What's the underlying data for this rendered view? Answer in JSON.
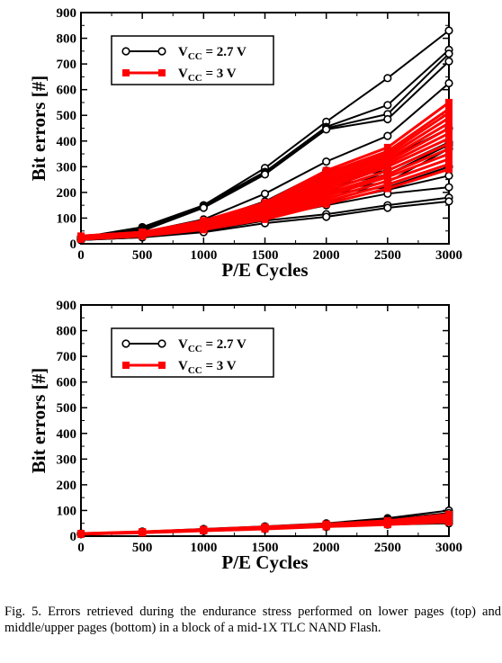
{
  "caption": "Fig. 5.  Errors retrieved during the endurance stress performed on lower pages (top) and middle/upper pages (bottom) in a block of a mid-1X TLC NAND Flash.",
  "colors": {
    "v27": "#000000",
    "v3": "#ff0000"
  },
  "chart_data": [
    {
      "type": "line",
      "panel": "top",
      "xlabel": "P/E Cycles",
      "ylabel": "Bit errors [#]",
      "xlim": [
        0,
        3000
      ],
      "ylim": [
        0,
        900
      ],
      "x_ticks": [
        0,
        500,
        1000,
        1500,
        2000,
        2500,
        3000
      ],
      "y_ticks": [
        0,
        100,
        200,
        300,
        400,
        500,
        600,
        700,
        800,
        900
      ],
      "legend": {
        "position": "top-left",
        "entries": [
          {
            "label_main": "V",
            "label_sub": "CC",
            "label_rest": " = 2.7 V",
            "color": "#000000",
            "marker": "open-circle"
          },
          {
            "label_main": "V",
            "label_sub": "CC",
            "label_rest": " = 3 V",
            "color": "#ff0000",
            "marker": "filled-square"
          }
        ]
      },
      "x": [
        0,
        500,
        1000,
        1500,
        2000,
        2500,
        3000
      ],
      "series": [
        {
          "group": "2.7V",
          "values": [
            25,
            65,
            150,
            295,
            475,
            645,
            830
          ]
        },
        {
          "group": "2.7V",
          "values": [
            25,
            60,
            150,
            280,
            455,
            540,
            755
          ]
        },
        {
          "group": "2.7V",
          "values": [
            25,
            55,
            145,
            275,
            450,
            505,
            740
          ]
        },
        {
          "group": "2.7V",
          "values": [
            25,
            50,
            140,
            270,
            445,
            485,
            710
          ]
        },
        {
          "group": "2.7V",
          "values": [
            20,
            45,
            95,
            195,
            320,
            420,
            625
          ]
        },
        {
          "group": "2.7V",
          "values": [
            20,
            40,
            85,
            165,
            285,
            330,
            450
          ]
        },
        {
          "group": "2.7V",
          "values": [
            20,
            35,
            80,
            145,
            250,
            285,
            395
          ]
        },
        {
          "group": "2.7V",
          "values": [
            20,
            35,
            75,
            135,
            220,
            270,
            385
          ]
        },
        {
          "group": "2.7V",
          "values": [
            15,
            35,
            70,
            125,
            205,
            240,
            370
          ]
        },
        {
          "group": "2.7V",
          "values": [
            15,
            30,
            65,
            115,
            195,
            220,
            300
          ]
        },
        {
          "group": "2.7V",
          "values": [
            15,
            30,
            60,
            110,
            160,
            210,
            265
          ]
        },
        {
          "group": "2.7V",
          "values": [
            15,
            28,
            55,
            100,
            150,
            195,
            220
          ]
        },
        {
          "group": "2.7V",
          "values": [
            15,
            25,
            50,
            90,
            115,
            150,
            180
          ]
        },
        {
          "group": "2.7V",
          "values": [
            15,
            25,
            45,
            80,
            105,
            140,
            165
          ]
        },
        {
          "group": "3V",
          "values": [
            30,
            45,
            90,
            160,
            285,
            375,
            550
          ]
        },
        {
          "group": "3V",
          "values": [
            30,
            45,
            85,
            155,
            275,
            360,
            525
          ]
        },
        {
          "group": "3V",
          "values": [
            28,
            42,
            85,
            150,
            265,
            350,
            510
          ]
        },
        {
          "group": "3V",
          "values": [
            28,
            42,
            80,
            145,
            255,
            340,
            490
          ]
        },
        {
          "group": "3V",
          "values": [
            25,
            40,
            80,
            140,
            245,
            330,
            470
          ]
        },
        {
          "group": "3V",
          "values": [
            25,
            40,
            75,
            135,
            235,
            320,
            450
          ]
        },
        {
          "group": "3V",
          "values": [
            25,
            38,
            75,
            130,
            225,
            310,
            430
          ]
        },
        {
          "group": "3V",
          "values": [
            22,
            38,
            70,
            125,
            215,
            300,
            410
          ]
        },
        {
          "group": "3V",
          "values": [
            22,
            35,
            70,
            120,
            205,
            285,
            390
          ]
        },
        {
          "group": "3V",
          "values": [
            20,
            35,
            65,
            115,
            195,
            270,
            370
          ]
        },
        {
          "group": "3V",
          "values": [
            20,
            32,
            65,
            110,
            185,
            260,
            350
          ]
        },
        {
          "group": "3V",
          "values": [
            20,
            32,
            60,
            105,
            175,
            245,
            330
          ]
        },
        {
          "group": "3V",
          "values": [
            18,
            30,
            60,
            100,
            165,
            230,
            310
          ]
        },
        {
          "group": "3V",
          "values": [
            18,
            30,
            55,
            95,
            155,
            215,
            290
          ]
        }
      ]
    },
    {
      "type": "line",
      "panel": "bottom",
      "xlabel": "P/E Cycles",
      "ylabel": "Bit errors [#]",
      "xlim": [
        0,
        3000
      ],
      "ylim": [
        0,
        900
      ],
      "x_ticks": [
        0,
        500,
        1000,
        1500,
        2000,
        2500,
        3000
      ],
      "y_ticks": [
        0,
        100,
        200,
        300,
        400,
        500,
        600,
        700,
        800,
        900
      ],
      "legend": {
        "position": "top-left",
        "entries": [
          {
            "label_main": "V",
            "label_sub": "CC",
            "label_rest": " = 2.7 V",
            "color": "#000000",
            "marker": "open-circle"
          },
          {
            "label_main": "V",
            "label_sub": "CC",
            "label_rest": " = 3 V",
            "color": "#ff0000",
            "marker": "filled-square"
          }
        ]
      },
      "x": [
        0,
        500,
        1000,
        1500,
        2000,
        2500,
        3000
      ],
      "series": [
        {
          "group": "2.7V",
          "values": [
            10,
            18,
            28,
            38,
            50,
            70,
            100
          ]
        },
        {
          "group": "2.7V",
          "values": [
            10,
            17,
            26,
            36,
            48,
            65,
            90
          ]
        },
        {
          "group": "2.7V",
          "values": [
            9,
            16,
            25,
            34,
            45,
            60,
            80
          ]
        },
        {
          "group": "2.7V",
          "values": [
            9,
            15,
            23,
            32,
            42,
            55,
            70
          ]
        },
        {
          "group": "2.7V",
          "values": [
            8,
            14,
            22,
            30,
            40,
            50,
            60
          ]
        },
        {
          "group": "2.7V",
          "values": [
            8,
            13,
            20,
            28,
            36,
            45,
            50
          ]
        },
        {
          "group": "3V",
          "values": [
            10,
            17,
            26,
            36,
            47,
            60,
            85
          ]
        },
        {
          "group": "3V",
          "values": [
            10,
            16,
            25,
            34,
            45,
            57,
            78
          ]
        },
        {
          "group": "3V",
          "values": [
            9,
            15,
            24,
            33,
            43,
            54,
            72
          ]
        },
        {
          "group": "3V",
          "values": [
            9,
            15,
            23,
            31,
            41,
            51,
            66
          ]
        },
        {
          "group": "3V",
          "values": [
            8,
            14,
            22,
            30,
            39,
            48,
            60
          ]
        },
        {
          "group": "3V",
          "values": [
            8,
            13,
            21,
            28,
            37,
            45,
            55
          ]
        }
      ]
    }
  ]
}
